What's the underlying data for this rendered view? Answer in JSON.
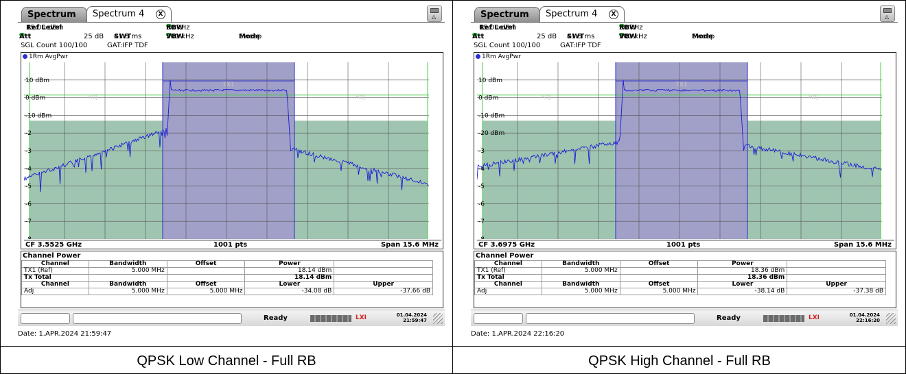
{
  "panels": [
    {
      "tabs": {
        "inactive": "Spectrum",
        "active": "Spectrum 4",
        "close": "X"
      },
      "settings": {
        "ref_level_label": "Ref Level",
        "ref_level_value": "15.00 dBm",
        "att_label": "Att",
        "att_value": "25 dB",
        "swt_label": "SWT",
        "swt_value": "41.5 ms",
        "rbw_label": "RBW",
        "rbw_value": "50 kHz",
        "vbw_label": "VBW",
        "vbw_value": "200 kHz",
        "mode_label": "Mode",
        "mode_value": "Sweep",
        "sgl_count": "SGL Count 100/100",
        "gat": "GAT:IFP TDF"
      },
      "trace_label": "1Rm AvgPwr",
      "y_labels": [
        "10 dBm",
        "0 dBm",
        "-10 dBm"
      ],
      "y_partial": [
        "-2",
        "-3",
        "-4",
        "-5",
        "-6",
        "-7",
        "-8"
      ],
      "zone_labels": {
        "adj_left": "Adj",
        "tx": "TX1",
        "adj_right": "Adj"
      },
      "footer": {
        "cf": "CF 3.5525 GHz",
        "pts": "1001 pts",
        "span": "Span 15.6 MHz"
      },
      "channel_power": {
        "title": "Channel Power",
        "header1": [
          "Channel",
          "Bandwidth",
          "Offset",
          "Power"
        ],
        "tx_row": [
          "TX1 (Ref)",
          "5.000 MHz",
          "",
          "18.14 dBm"
        ],
        "total_label": "Tx Total",
        "total_value": "18.14 dBm",
        "header2": [
          "Channel",
          "Bandwidth",
          "Offset",
          "Lower",
          "Upper"
        ],
        "adj_row": [
          "Adj",
          "5.000 MHz",
          "5.000 MHz",
          "-34.08 dB",
          "-37.66 dB"
        ]
      },
      "status": {
        "ready": "Ready",
        "date": "01.04.2024",
        "time": "21:59:47"
      },
      "datestamp": "Date: 1.APR.2024  21:59:47",
      "caption": "QPSK Low Channel - Full RB",
      "trace_profile": "low"
    },
    {
      "tabs": {
        "inactive": "Spectrum",
        "active": "Spectrum 4",
        "close": "X"
      },
      "settings": {
        "ref_level_label": "Ref Level",
        "ref_level_value": "15.00 dBm",
        "att_label": "Att",
        "att_value": "25 dB",
        "swt_label": "SWT",
        "swt_value": "41.5 ms",
        "rbw_label": "RBW",
        "rbw_value": "50 kHz",
        "vbw_label": "VBW",
        "vbw_value": "200 kHz",
        "mode_label": "Mode",
        "mode_value": "Sweep",
        "sgl_count": "SGL Count 100/100",
        "gat": "GAT:IFP TDF"
      },
      "trace_label": "1Rm AvgPwr",
      "y_labels": [
        "10 dBm",
        "0 dBm",
        "-10 dBm"
      ],
      "y_partial": [
        "-20 dBm",
        "-3",
        "-4",
        "-5",
        "-6",
        "-7",
        "-8"
      ],
      "zone_labels": {
        "adj_left": "Adj",
        "tx": "TX1",
        "adj_right": "Adj"
      },
      "footer": {
        "cf": "CF 3.6975 GHz",
        "pts": "1001 pts",
        "span": "Span 15.6 MHz"
      },
      "channel_power": {
        "title": "Channel Power",
        "header1": [
          "Channel",
          "Bandwidth",
          "Offset",
          "Power"
        ],
        "tx_row": [
          "TX1 (Ref)",
          "5.000 MHz",
          "",
          "18.36 dBm"
        ],
        "total_label": "Tx Total",
        "total_value": "18.36 dBm",
        "header2": [
          "Channel",
          "Bandwidth",
          "Offset",
          "Lower",
          "Upper"
        ],
        "adj_row": [
          "Adj",
          "5.000 MHz",
          "5.000 MHz",
          "-38.14 dB",
          "-37.38 dB"
        ]
      },
      "status": {
        "ready": "Ready",
        "date": "01.04.2024",
        "time": "22:16:20"
      },
      "datestamp": "Date: 1.APR.2024  22:16:20",
      "caption": "QPSK High Channel - Full RB",
      "trace_profile": "high"
    }
  ],
  "colors": {
    "tx_band": "#a0a0c8",
    "adj_band": "#9fc4b0",
    "trace": "#1a1ad6",
    "limit_line": "#44cc44"
  }
}
